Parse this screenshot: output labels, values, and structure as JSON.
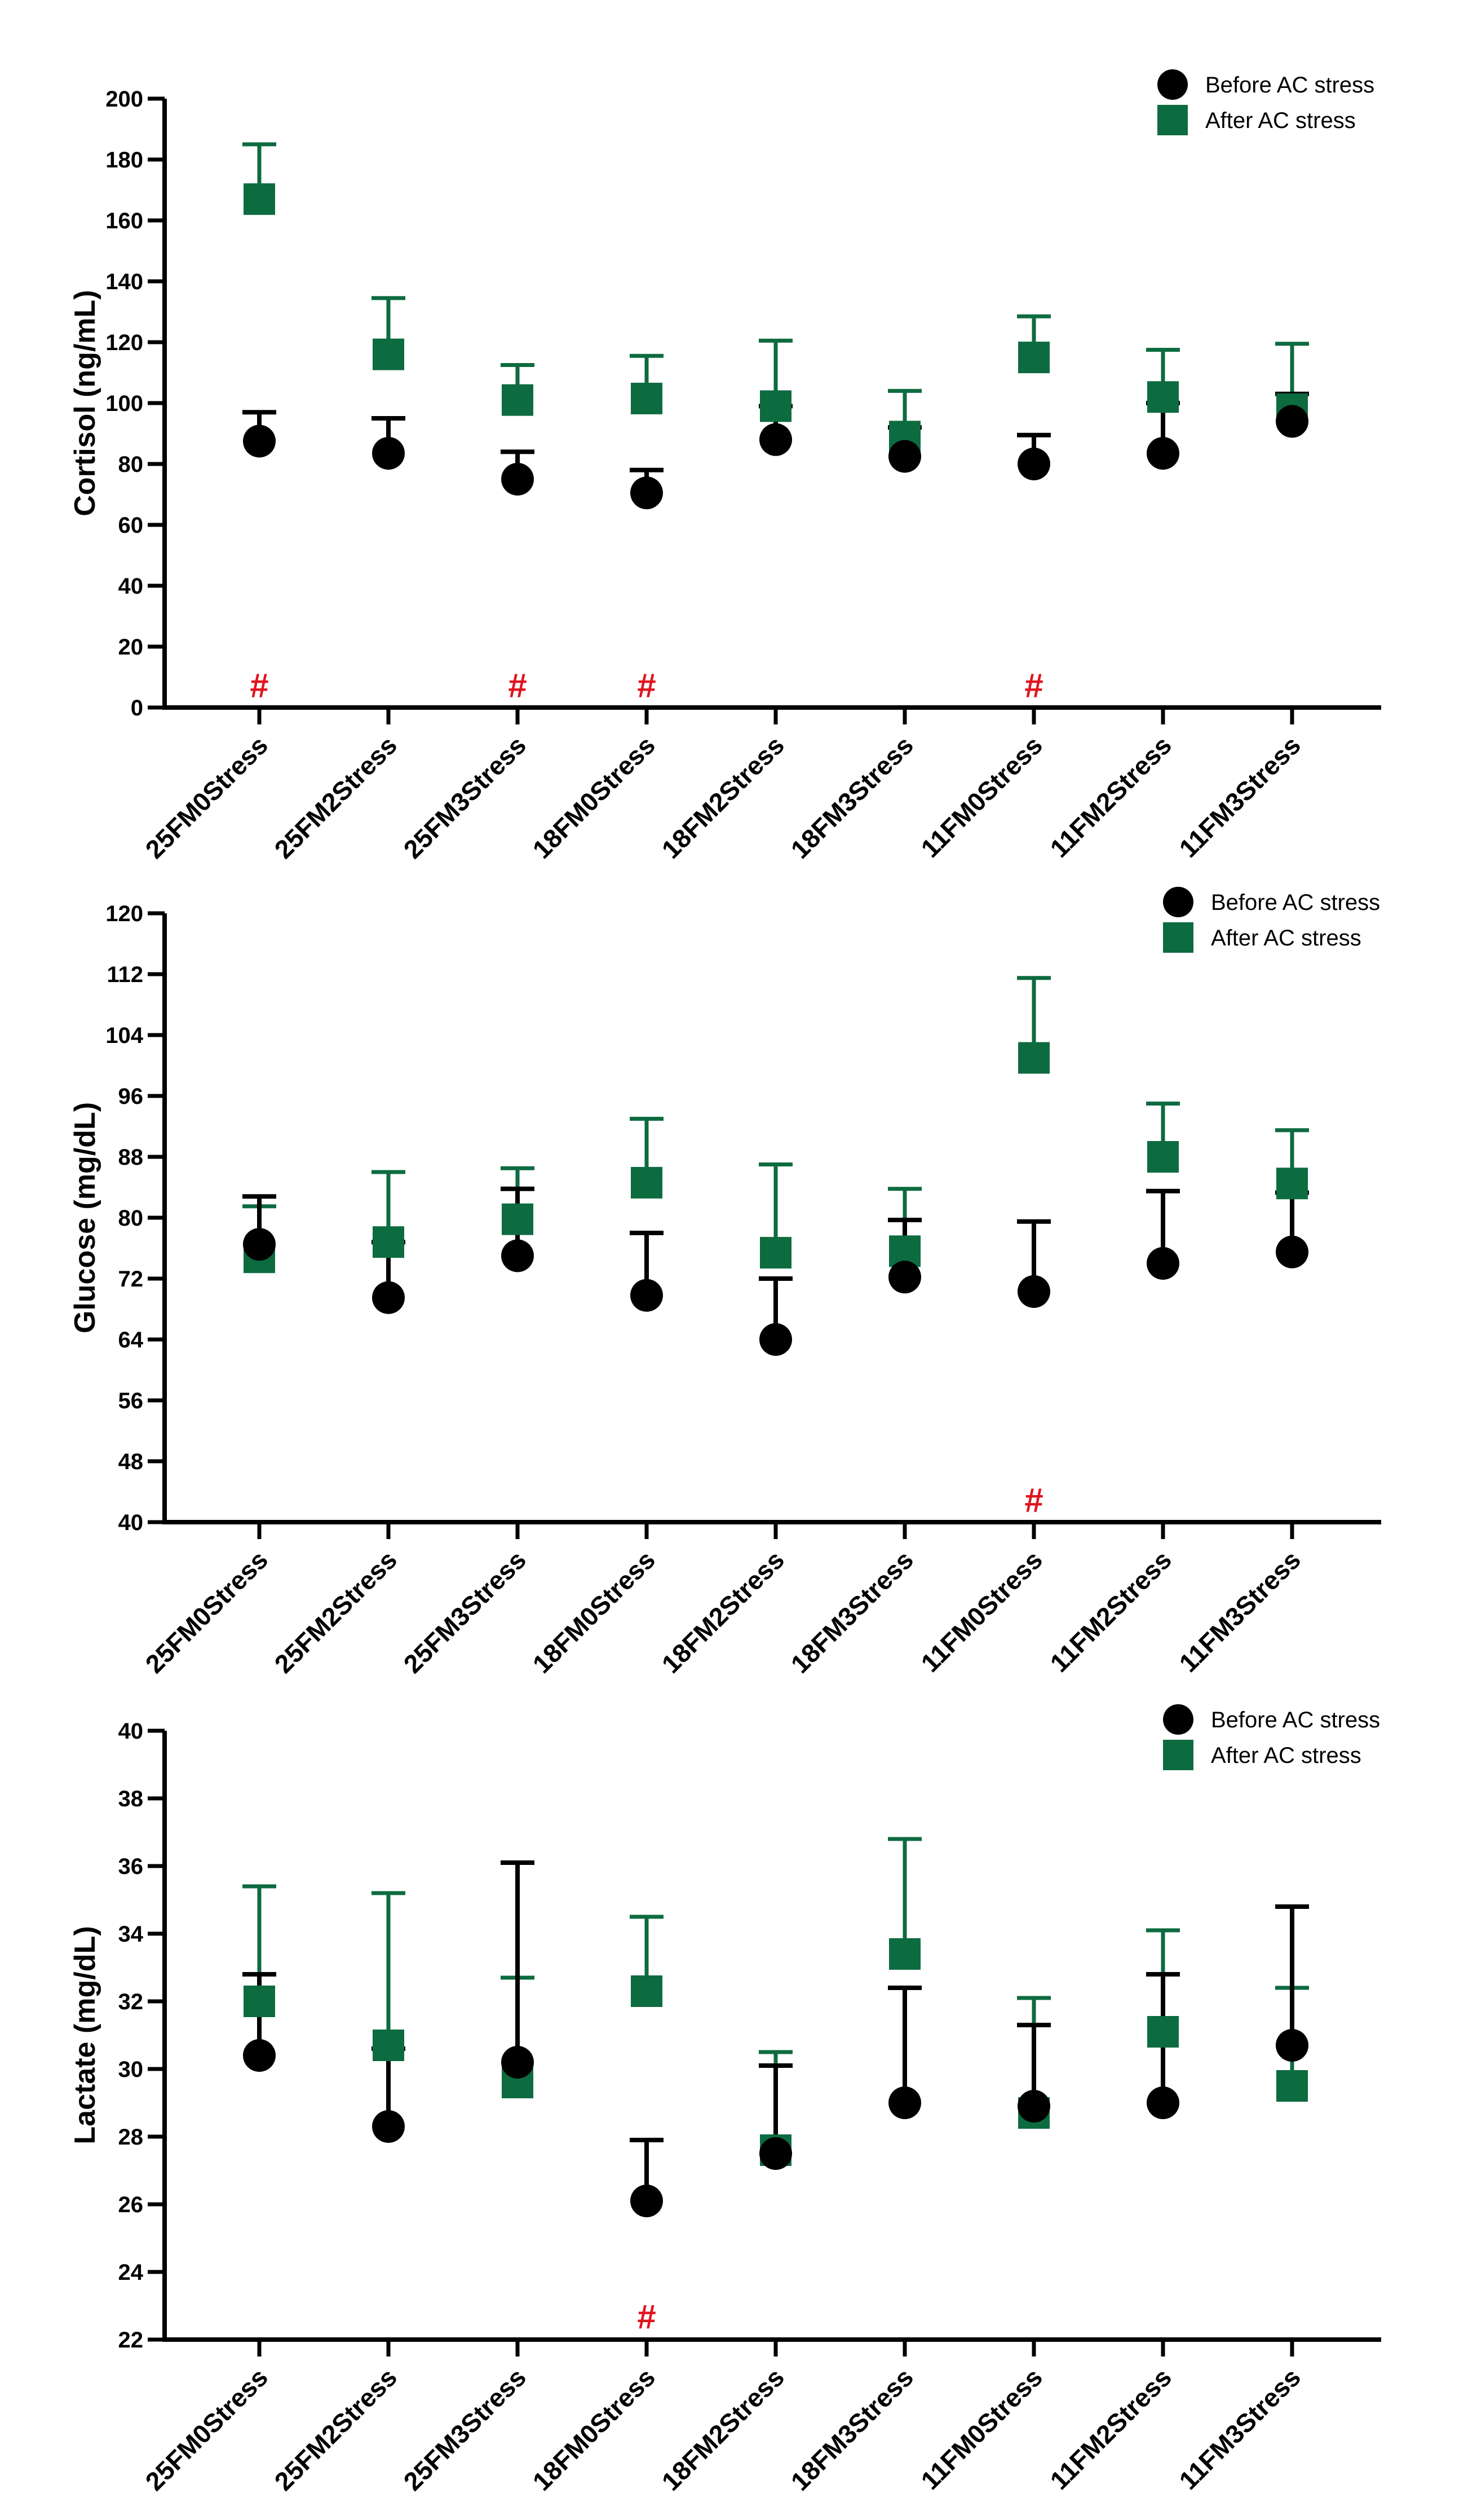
{
  "colors": {
    "before": "#000000",
    "after": "#0d6b40",
    "significance": "#e0141e",
    "axis": "#000000"
  },
  "chart_data": [
    {
      "type": "scatter",
      "ylabel": "Cortisol (ng/mL)",
      "ylim": [
        0,
        200
      ],
      "yticks": [
        0,
        20,
        40,
        60,
        80,
        100,
        120,
        140,
        160,
        180,
        200
      ],
      "legend_position": "top-right",
      "categories": [
        "25FM0Stress",
        "25FM2Stress",
        "25FM3Stress",
        "18FM0Stress",
        "18FM2Stress",
        "18FM3Stress",
        "11FM0Stress",
        "11FM2Stress",
        "11FM3Stress"
      ],
      "series": [
        {
          "name": "Before AC stress",
          "marker": "circle",
          "values": [
            87.5,
            83.5,
            75,
            70.5,
            88,
            82.5,
            80,
            83.5,
            94
          ],
          "error_upper": [
            97,
            95,
            84,
            78,
            99,
            92,
            89.5,
            100,
            103
          ]
        },
        {
          "name": "After AC stress",
          "marker": "square",
          "values": [
            167,
            116,
            101,
            101.5,
            99,
            89,
            115,
            102,
            98
          ],
          "error_upper": [
            185,
            134.5,
            112.5,
            115.5,
            120.5,
            104,
            128.5,
            117.5,
            119.5
          ]
        }
      ],
      "significance": {
        "symbol": "#",
        "categories": [
          "25FM0Stress",
          "25FM3Stress",
          "18FM0Stress",
          "11FM0Stress"
        ],
        "y": 7.5
      }
    },
    {
      "type": "scatter",
      "ylabel": "Glucose (mg/dL)",
      "ylim": [
        40,
        120
      ],
      "yticks": [
        40,
        48,
        56,
        64,
        72,
        80,
        88,
        96,
        104,
        112,
        120
      ],
      "legend_position": "top-right",
      "categories": [
        "25FM0Stress",
        "25FM2Stress",
        "25FM3Stress",
        "18FM0Stress",
        "18FM2Stress",
        "18FM3Stress",
        "11FM0Stress",
        "11FM2Stress",
        "11FM3Stress"
      ],
      "series": [
        {
          "name": "Before AC stress",
          "marker": "circle",
          "values": [
            76.5,
            69.5,
            75,
            69.8,
            64,
            72.2,
            70.3,
            74,
            75.5
          ],
          "error_upper": [
            82.8,
            76.8,
            83.8,
            78,
            72,
            79.7,
            79.5,
            83.5,
            83.3
          ]
        },
        {
          "name": "After AC stress",
          "marker": "square",
          "values": [
            74.8,
            76.8,
            79.8,
            84.6,
            75.4,
            75.6,
            101,
            88,
            84.5
          ],
          "error_upper": [
            81.5,
            86,
            86.5,
            93,
            87,
            83.8,
            111.5,
            95,
            91.5
          ]
        }
      ],
      "significance": {
        "symbol": "#",
        "categories": [
          "11FM0Stress"
        ],
        "y": 43
      }
    },
    {
      "type": "scatter",
      "ylabel": "Lactate (mg/dL)",
      "ylim": [
        22,
        40
      ],
      "yticks": [
        22,
        24,
        26,
        28,
        30,
        32,
        34,
        36,
        38,
        40
      ],
      "legend_position": "top-right",
      "categories": [
        "25FM0Stress",
        "25FM2Stress",
        "25FM3Stress",
        "18FM0Stress",
        "18FM2Stress",
        "18FM3Stress",
        "11FM0Stress",
        "11FM2Stress",
        "11FM3Stress"
      ],
      "series": [
        {
          "name": "Before AC stress",
          "marker": "circle",
          "values": [
            30.4,
            28.3,
            30.2,
            26.1,
            27.5,
            29,
            28.9,
            29,
            30.7
          ],
          "error_upper": [
            32.8,
            30.6,
            36.1,
            27.9,
            30.1,
            32.4,
            31.3,
            32.8,
            34.8
          ]
        },
        {
          "name": "After AC stress",
          "marker": "square",
          "values": [
            32,
            30.7,
            29.6,
            32.3,
            27.6,
            33.4,
            28.7,
            31.1,
            29.5
          ],
          "error_upper": [
            35.4,
            35.2,
            32.7,
            34.5,
            30.5,
            36.8,
            32.1,
            34.1,
            32.4
          ]
        }
      ],
      "significance": {
        "symbol": "#",
        "categories": [
          "18FM0Stress"
        ],
        "y": 22.7
      }
    }
  ]
}
